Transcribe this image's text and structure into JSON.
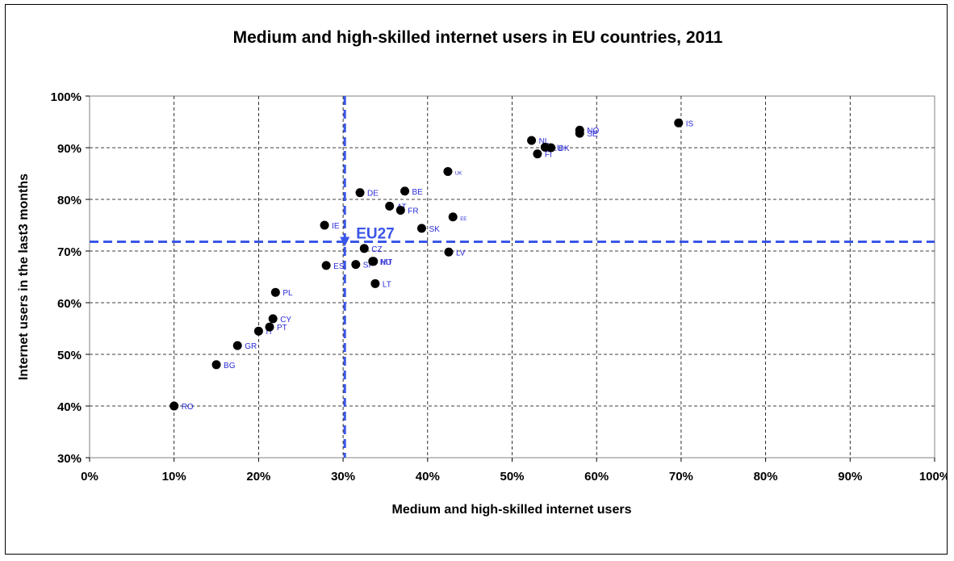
{
  "chart_data": {
    "type": "scatter",
    "title": "Medium and high-skilled internet users in EU countries, 2011",
    "xlabel": "Medium and high-skilled internet users",
    "ylabel": "Internet users in the last3 months",
    "xlim": [
      0,
      100
    ],
    "ylim": [
      30,
      100
    ],
    "x_ticks": [
      0,
      10,
      20,
      30,
      40,
      50,
      60,
      70,
      80,
      90,
      100
    ],
    "y_ticks": [
      30,
      40,
      50,
      60,
      70,
      80,
      90,
      100
    ],
    "x_tick_labels": [
      "0%",
      "10%",
      "20%",
      "30%",
      "40%",
      "50%",
      "60%",
      "70%",
      "80%",
      "90%",
      "100%"
    ],
    "y_tick_labels": [
      "30%",
      "40%",
      "50%",
      "60%",
      "70%",
      "80%",
      "90%",
      "100%"
    ],
    "grid": "dashed",
    "legend": "none",
    "marker_color": "#000000",
    "label_color": "#2b2bd9",
    "reference_color": "#3a56e8",
    "reference": {
      "label": "EU27",
      "x": 30.2,
      "y": 71.8
    },
    "points": [
      {
        "label": "RO",
        "x": 10.0,
        "y": 40.0
      },
      {
        "label": "BG",
        "x": 15.0,
        "y": 48.0
      },
      {
        "label": "GR",
        "x": 17.5,
        "y": 51.7
      },
      {
        "label": "IT",
        "x": 20.0,
        "y": 54.5
      },
      {
        "label": "PT",
        "x": 21.3,
        "y": 55.3
      },
      {
        "label": "CY",
        "x": 21.7,
        "y": 56.9
      },
      {
        "label": "PL",
        "x": 22.0,
        "y": 62.0
      },
      {
        "label": "ES",
        "x": 28.0,
        "y": 67.2
      },
      {
        "label": "IE",
        "x": 27.8,
        "y": 75.0
      },
      {
        "label": "SI",
        "x": 31.5,
        "y": 67.4
      },
      {
        "label": "CZ",
        "x": 32.5,
        "y": 70.5
      },
      {
        "label": "DE",
        "x": 32.0,
        "y": 81.3
      },
      {
        "label": "HU",
        "x": 33.5,
        "y": 68.0
      },
      {
        "label": "MT",
        "x": 33.6,
        "y": 68.0
      },
      {
        "label": "LT",
        "x": 33.8,
        "y": 63.7
      },
      {
        "label": "AT",
        "x": 35.5,
        "y": 78.7
      },
      {
        "label": "FR",
        "x": 36.8,
        "y": 77.9
      },
      {
        "label": "BE",
        "x": 37.3,
        "y": 81.6
      },
      {
        "label": "SK",
        "x": 39.3,
        "y": 74.4
      },
      {
        "label": "UK",
        "x": 42.4,
        "y": 85.4
      },
      {
        "label": "LV",
        "x": 42.5,
        "y": 69.8
      },
      {
        "label": "EE",
        "x": 43.0,
        "y": 76.6
      },
      {
        "label": "NL",
        "x": 52.3,
        "y": 91.4
      },
      {
        "label": "FI",
        "x": 53.0,
        "y": 88.8
      },
      {
        "label": "LU",
        "x": 53.9,
        "y": 90.1
      },
      {
        "label": "DK",
        "x": 54.6,
        "y": 90.0
      },
      {
        "label": "NO",
        "x": 58.0,
        "y": 93.4
      },
      {
        "label": "SE",
        "x": 58.0,
        "y": 92.8
      },
      {
        "label": "IS",
        "x": 69.7,
        "y": 94.8
      }
    ]
  }
}
